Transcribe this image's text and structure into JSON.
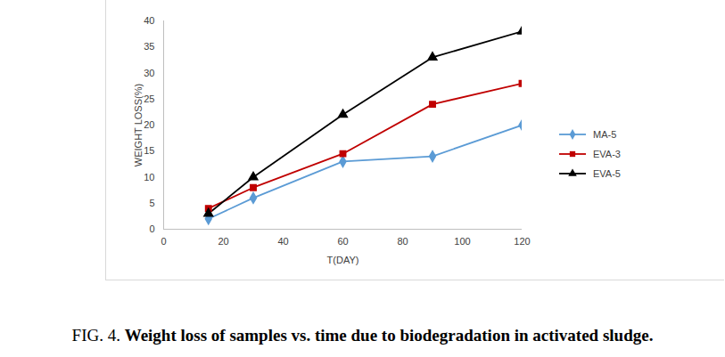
{
  "chart_data": {
    "type": "line",
    "title": "FIG. 4. Weight loss of samples vs. time due to biodegradation in activated sludge.",
    "x_label": "T(DAY)",
    "y_label": "WEIGHT LOSS(%)",
    "x": [
      15,
      30,
      60,
      90,
      120
    ],
    "series": [
      {
        "name": "MA-5",
        "color": "#5b9bd5",
        "marker": "diamond",
        "values": [
          2,
          6,
          13,
          14,
          20
        ]
      },
      {
        "name": "EVA-3",
        "color": "#c00000",
        "marker": "square",
        "values": [
          4,
          8,
          14.5,
          24,
          28
        ]
      },
      {
        "name": "EVA-5",
        "color": "#000000",
        "marker": "triangle",
        "values": [
          3,
          10,
          22,
          33,
          38
        ]
      }
    ],
    "xlim": [
      0,
      120
    ],
    "xticks": [
      0,
      20,
      40,
      60,
      80,
      100,
      120
    ],
    "ylim": [
      0,
      40
    ],
    "yticks": [
      0,
      5,
      10,
      15,
      20,
      25,
      30,
      35,
      40
    ],
    "grid": false,
    "legend": "right"
  }
}
